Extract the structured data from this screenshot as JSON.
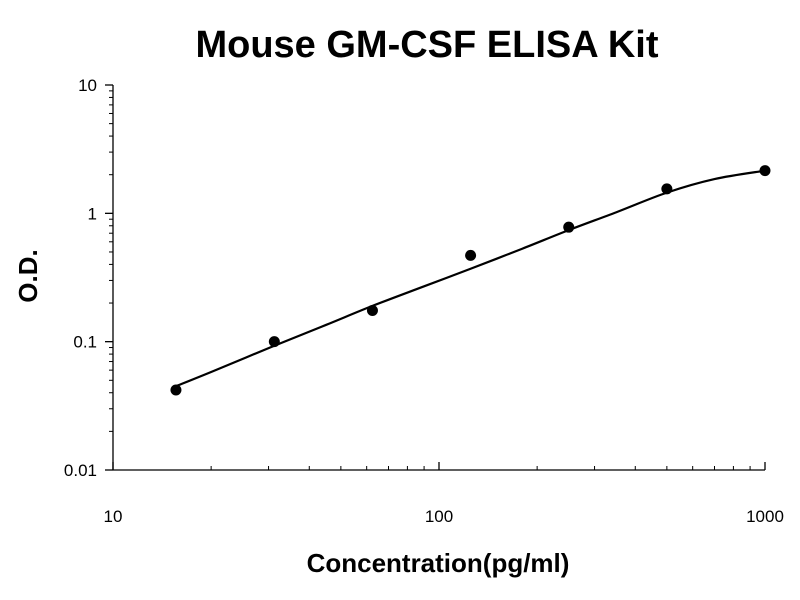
{
  "chart_data": {
    "type": "scatter",
    "title": "Mouse GM-CSF ELISA Kit",
    "xlabel": "Concentration(pg/ml)",
    "ylabel": "O.D.",
    "xscale": "log",
    "yscale": "log",
    "xlim": [
      10,
      1000
    ],
    "ylim": [
      0.01,
      10
    ],
    "xticks": [
      10,
      100,
      1000
    ],
    "xtick_labels": [
      "10",
      "100",
      "1000"
    ],
    "yticks": [
      0.01,
      0.1,
      1,
      10
    ],
    "ytick_labels": [
      "0.01",
      "0.1",
      "1",
      "10"
    ],
    "grid": false,
    "series": [
      {
        "x": [
          15.6,
          31.25,
          62.5,
          125,
          250,
          500,
          1000
        ],
        "y": [
          0.042,
          0.1,
          0.175,
          0.47,
          0.78,
          1.55,
          2.15
        ]
      }
    ],
    "fit_curve": {
      "x": [
        15.6,
        20,
        31.25,
        45,
        62.5,
        90,
        125,
        180,
        250,
        350,
        500,
        700,
        1000
      ],
      "y": [
        0.045,
        0.058,
        0.093,
        0.135,
        0.19,
        0.27,
        0.37,
        0.53,
        0.74,
        1.02,
        1.45,
        1.85,
        2.15
      ]
    },
    "colors": {
      "marker": "#000000",
      "line": "#000000",
      "axis": "#000000"
    }
  }
}
